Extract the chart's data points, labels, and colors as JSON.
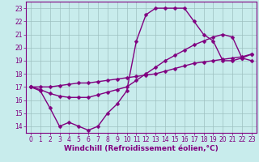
{
  "xlabel": "Windchill (Refroidissement éolien,°C)",
  "bg_color": "#c8ecec",
  "line_color": "#800080",
  "grid_color": "#9ec0c0",
  "xlim": [
    -0.5,
    23.5
  ],
  "ylim": [
    13.5,
    23.5
  ],
  "xticks": [
    0,
    1,
    2,
    3,
    4,
    5,
    6,
    7,
    8,
    9,
    10,
    11,
    12,
    13,
    14,
    15,
    16,
    17,
    18,
    19,
    20,
    21,
    22,
    23
  ],
  "yticks": [
    14,
    15,
    16,
    17,
    18,
    19,
    20,
    21,
    22,
    23
  ],
  "line1_x": [
    0,
    1,
    2,
    3,
    4,
    5,
    6,
    7,
    8,
    9,
    10,
    11,
    12,
    13,
    14,
    15,
    16,
    17,
    18,
    19,
    20,
    21,
    22,
    23
  ],
  "line1_y": [
    17.0,
    16.7,
    15.4,
    14.0,
    14.3,
    14.0,
    13.7,
    14.0,
    15.0,
    15.7,
    16.7,
    20.5,
    22.5,
    23.0,
    23.0,
    23.0,
    23.0,
    22.0,
    21.0,
    20.5,
    19.0,
    19.0,
    19.2,
    19.5
  ],
  "line2_x": [
    0,
    1,
    2,
    3,
    4,
    5,
    6,
    7,
    8,
    9,
    10,
    11,
    12,
    13,
    14,
    15,
    16,
    17,
    18,
    19,
    20,
    21,
    22,
    23
  ],
  "line2_y": [
    17.0,
    16.8,
    16.5,
    16.3,
    16.2,
    16.2,
    16.2,
    16.4,
    16.6,
    16.8,
    17.0,
    17.5,
    18.0,
    18.5,
    19.0,
    19.4,
    19.8,
    20.2,
    20.5,
    20.8,
    21.0,
    20.8,
    19.2,
    19.0
  ],
  "line3_x": [
    0,
    1,
    2,
    3,
    4,
    5,
    6,
    7,
    8,
    9,
    10,
    11,
    12,
    13,
    14,
    15,
    16,
    17,
    18,
    19,
    20,
    21,
    22,
    23
  ],
  "line3_y": [
    17.0,
    17.0,
    17.0,
    17.1,
    17.2,
    17.3,
    17.3,
    17.4,
    17.5,
    17.6,
    17.7,
    17.8,
    17.9,
    18.0,
    18.2,
    18.4,
    18.6,
    18.8,
    18.9,
    19.0,
    19.1,
    19.2,
    19.3,
    19.5
  ],
  "markersize": 2.5,
  "linewidth": 1.0,
  "xlabel_fontsize": 6.5,
  "tick_fontsize": 5.5
}
